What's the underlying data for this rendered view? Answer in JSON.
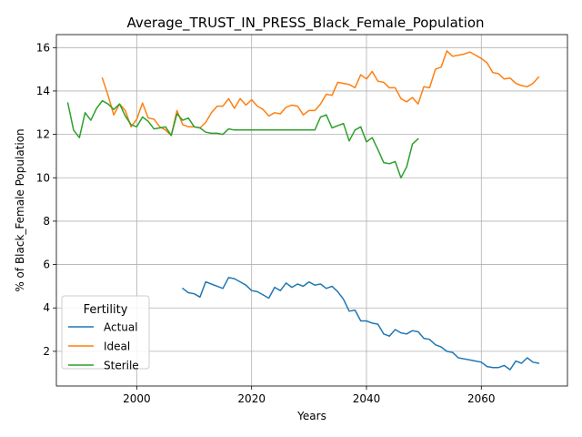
{
  "chart_data": {
    "type": "line",
    "title": "Average_TRUST_IN_PRESS_Black_Female_Population",
    "xlabel": "Years",
    "ylabel": "% of Black_Female Population",
    "xlim": [
      1986,
      2075
    ],
    "ylim": [
      0.4,
      16.6
    ],
    "xticks": [
      2000,
      2020,
      2040,
      2060
    ],
    "yticks": [
      2,
      4,
      6,
      8,
      10,
      12,
      14,
      16
    ],
    "grid": true,
    "legend": {
      "title": "Fertility",
      "placement": "lower-left"
    },
    "series": [
      {
        "name": "Actual",
        "color": "#1f77b4",
        "x": [
          2008,
          2009,
          2010,
          2011,
          2012,
          2013,
          2014,
          2015,
          2016,
          2017,
          2018,
          2019,
          2020,
          2021,
          2022,
          2023,
          2024,
          2025,
          2026,
          2027,
          2028,
          2029,
          2030,
          2031,
          2032,
          2033,
          2034,
          2035,
          2036,
          2037,
          2038,
          2039,
          2040,
          2041,
          2042,
          2043,
          2044,
          2045,
          2046,
          2047,
          2048,
          2049,
          2050,
          2051,
          2052,
          2053,
          2054,
          2055,
          2056,
          2057,
          2058,
          2059,
          2060,
          2061,
          2062,
          2063,
          2064,
          2065,
          2066,
          2067,
          2068,
          2069,
          2070
        ],
        "values": [
          4.9,
          4.7,
          4.65,
          4.5,
          5.2,
          5.1,
          5.0,
          4.9,
          5.4,
          5.35,
          5.2,
          5.05,
          4.8,
          4.75,
          4.6,
          4.45,
          4.95,
          4.8,
          5.15,
          4.95,
          5.1,
          5.0,
          5.2,
          5.05,
          5.1,
          4.9,
          5.0,
          4.75,
          4.4,
          3.85,
          3.9,
          3.4,
          3.4,
          3.3,
          3.25,
          2.8,
          2.7,
          3.0,
          2.85,
          2.8,
          2.95,
          2.9,
          2.6,
          2.55,
          2.3,
          2.2,
          2.0,
          1.95,
          1.7,
          1.65,
          1.6,
          1.55,
          1.5,
          1.3,
          1.25,
          1.25,
          1.35,
          1.15,
          1.55,
          1.45,
          1.7,
          1.5,
          1.45
        ]
      },
      {
        "name": "Ideal",
        "color": "#ff7f0e",
        "x": [
          1994,
          1995,
          1996,
          1997,
          1998,
          1999,
          2000,
          2001,
          2002,
          2003,
          2004,
          2005,
          2006,
          2007,
          2008,
          2009,
          2010,
          2011,
          2012,
          2013,
          2014,
          2015,
          2016,
          2017,
          2018,
          2019,
          2020,
          2021,
          2022,
          2023,
          2024,
          2025,
          2026,
          2027,
          2028,
          2029,
          2030,
          2031,
          2032,
          2033,
          2034,
          2035,
          2036,
          2037,
          2038,
          2039,
          2040,
          2041,
          2042,
          2043,
          2044,
          2045,
          2046,
          2047,
          2048,
          2049,
          2050,
          2051,
          2052,
          2053,
          2054,
          2055,
          2056,
          2057,
          2058,
          2059,
          2060,
          2061,
          2062,
          2063,
          2064,
          2065,
          2066,
          2067,
          2068,
          2069,
          2070
        ],
        "values": [
          14.6,
          13.8,
          12.9,
          13.4,
          13.1,
          12.35,
          12.7,
          13.45,
          12.75,
          12.7,
          12.35,
          12.2,
          11.95,
          13.1,
          12.45,
          12.35,
          12.35,
          12.3,
          12.55,
          13.0,
          13.3,
          13.3,
          13.65,
          13.2,
          13.65,
          13.35,
          13.6,
          13.3,
          13.15,
          12.85,
          13.0,
          12.95,
          13.25,
          13.35,
          13.3,
          12.9,
          13.1,
          13.1,
          13.4,
          13.85,
          13.8,
          14.4,
          14.35,
          14.3,
          14.15,
          14.75,
          14.55,
          14.9,
          14.45,
          14.4,
          14.15,
          14.15,
          13.65,
          13.5,
          13.7,
          13.4,
          14.2,
          14.15,
          15.0,
          15.1,
          15.85,
          15.6,
          15.65,
          15.7,
          15.8,
          15.65,
          15.5,
          15.3,
          14.85,
          14.8,
          14.55,
          14.6,
          14.35,
          14.25,
          14.2,
          14.35,
          14.65
        ]
      },
      {
        "name": "Sterile",
        "color": "#2ca02c",
        "x": [
          1988,
          1989,
          1990,
          1991,
          1992,
          1993,
          1994,
          1995,
          1996,
          1997,
          1998,
          1999,
          2000,
          2001,
          2002,
          2003,
          2004,
          2005,
          2006,
          2007,
          2008,
          2009,
          2010,
          2011,
          2012,
          2013,
          2014,
          2015,
          2016,
          2017,
          2018,
          2019,
          2020,
          2021,
          2022,
          2023,
          2024,
          2025,
          2026,
          2027,
          2028,
          2029,
          2030,
          2031,
          2032,
          2033,
          2034,
          2035,
          2036,
          2037,
          2038,
          2039,
          2040,
          2041,
          2042,
          2043,
          2044,
          2045,
          2046,
          2047,
          2048,
          2049
        ],
        "values": [
          13.45,
          12.2,
          11.85,
          13.0,
          12.65,
          13.2,
          13.55,
          13.4,
          13.15,
          13.4,
          12.85,
          12.45,
          12.35,
          12.8,
          12.6,
          12.25,
          12.3,
          12.35,
          11.95,
          12.95,
          12.65,
          12.75,
          12.35,
          12.3,
          12.1,
          12.05,
          12.05,
          12.0,
          12.25,
          12.2,
          12.2,
          12.2,
          12.2,
          12.2,
          12.2,
          12.2,
          12.2,
          12.2,
          12.2,
          12.2,
          12.2,
          12.2,
          12.2,
          12.2,
          12.8,
          12.9,
          12.3,
          12.4,
          12.5,
          11.7,
          12.2,
          12.35,
          11.65,
          11.85,
          11.3,
          10.7,
          10.65,
          10.75,
          10.0,
          10.5,
          11.55,
          11.8
        ]
      }
    ]
  }
}
